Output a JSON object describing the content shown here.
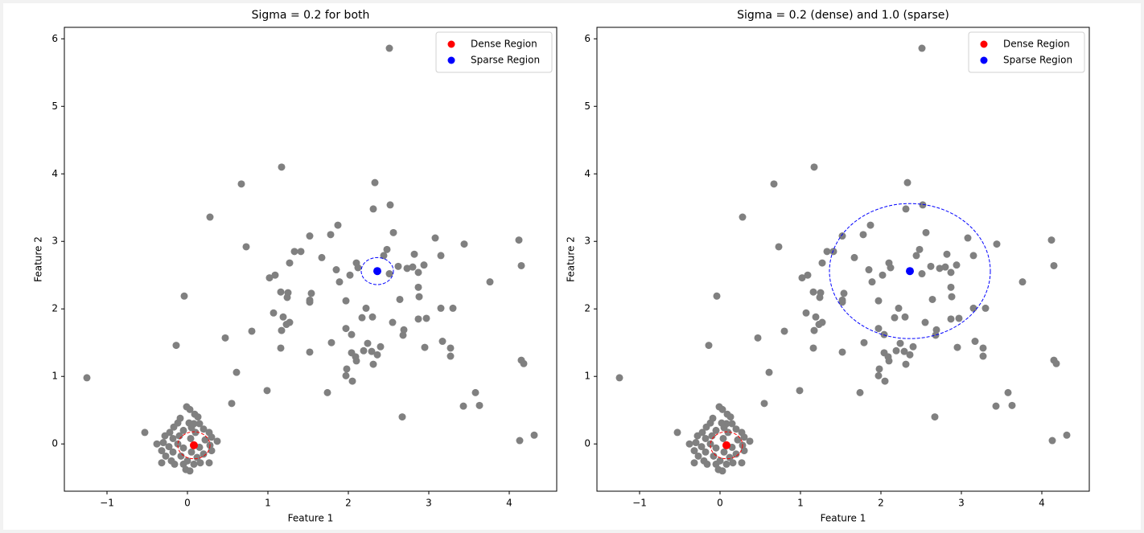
{
  "chart_data": [
    {
      "type": "scatter",
      "title": "Sigma = 0.2 for both",
      "xlabel": "Feature 1",
      "ylabel": "Feature 2",
      "xlim": [
        -1.53,
        4.59
      ],
      "ylim": [
        -0.7,
        6.17
      ],
      "xticks": [
        {
          "value": -1,
          "label": "−1"
        },
        0,
        1,
        2,
        3,
        4
      ],
      "yticks": [
        0,
        1,
        2,
        3,
        4,
        5,
        6
      ],
      "legend": "upper right",
      "series": [
        {
          "color": "#808080",
          "x": [
            -1.25,
            -0.53,
            -0.14,
            -0.04,
            0.28,
            0.47,
            0.55,
            0.61,
            0.67,
            0.73,
            0.8,
            0.99,
            1.02,
            1.09,
            1.17,
            1.07,
            1.16,
            1.19,
            1.16,
            1.17,
            1.23,
            1.27,
            1.24,
            1.27,
            1.33,
            1.41,
            1.25,
            1.52,
            1.54,
            1.52,
            1.52,
            1.52,
            1.67,
            1.74,
            1.78,
            1.79,
            1.87,
            1.85,
            1.89,
            1.97,
            1.97,
            1.98,
            1.97,
            2.02,
            2.04,
            2.04,
            2.05,
            2.09,
            2.1,
            2.1,
            2.12,
            2.17,
            2.22,
            2.24,
            2.19,
            2.29,
            2.31,
            2.33,
            2.31,
            2.3,
            2.36,
            2.4,
            2.44,
            2.48,
            2.52,
            2.51,
            2.51,
            2.55,
            2.56,
            2.62,
            2.64,
            2.67,
            2.68,
            2.69,
            2.73,
            2.8,
            2.82,
            2.87,
            2.87,
            2.88,
            2.87,
            2.95,
            2.94,
            2.97,
            3.08,
            3.15,
            3.15,
            3.17,
            3.27,
            3.27,
            3.3,
            3.44,
            3.43,
            3.58,
            3.63,
            3.76,
            4.12,
            4.15,
            4.15,
            4.18,
            4.13,
            4.31,
            -0.01,
            0.03,
            0.09,
            0.13,
            -0.09,
            0.02,
            -0.12,
            0.08,
            0.15,
            -0.17,
            0.05,
            0.2,
            -0.05,
            -0.22,
            0.1,
            0.27,
            -0.28,
            -0.1,
            0.3,
            -0.18,
            0.04,
            0.22,
            0.37,
            -0.3,
            -0.38,
            -0.12,
            0.28,
            -0.23,
            0.15,
            -0.05,
            -0.32,
            0.3,
            -0.18,
            0.05,
            0.2,
            -0.27,
            -0.08,
            0.12,
            -0.2,
            0,
            0.27,
            -0.32,
            0.16,
            -0.16,
            -0.05,
            0.08,
            -0.02,
            0.03
          ],
          "values": [
            0.98,
            0.17,
            1.46,
            2.19,
            3.36,
            1.57,
            0.6,
            1.06,
            3.85,
            2.92,
            1.67,
            0.79,
            2.46,
            2.5,
            4.1,
            1.94,
            2.25,
            1.88,
            1.42,
            1.68,
            1.77,
            1.8,
            2.17,
            2.68,
            2.85,
            2.85,
            2.24,
            2.13,
            2.23,
            2.1,
            1.36,
            3.08,
            2.76,
            0.76,
            3.1,
            1.5,
            3.24,
            2.58,
            2.4,
            2.12,
            1.71,
            1.11,
            1.01,
            2.5,
            1.62,
            1.35,
            0.93,
            1.29,
            1.23,
            2.68,
            2.61,
            1.87,
            2.01,
            1.49,
            1.38,
            1.37,
            3.48,
            3.87,
            1.18,
            1.88,
            1.32,
            1.44,
            2.79,
            2.88,
            3.54,
            2.52,
            5.86,
            1.8,
            3.13,
            2.63,
            2.14,
            0.4,
            1.61,
            1.69,
            2.6,
            2.62,
            2.81,
            2.54,
            2.32,
            2.18,
            1.85,
            1.43,
            2.65,
            1.86,
            3.05,
            2.01,
            2.79,
            1.52,
            1.42,
            1.3,
            2.01,
            2.96,
            0.56,
            0.76,
            0.57,
            2.4,
            3.02,
            2.64,
            1.24,
            1.19,
            0.05,
            0.13,
            0.55,
            0.51,
            0.44,
            0.4,
            0.38,
            0.31,
            0.31,
            0.3,
            0.3,
            0.25,
            0.24,
            0.22,
            0.2,
            0.17,
            0.17,
            0.17,
            0.12,
            0.12,
            0.1,
            0.08,
            0.08,
            0.06,
            0.04,
            0.02,
            0,
            0,
            -0.02,
            -0.04,
            -0.05,
            -0.06,
            -0.1,
            -0.1,
            -0.12,
            -0.12,
            -0.15,
            -0.18,
            -0.18,
            -0.2,
            -0.25,
            -0.25,
            -0.28,
            -0.28,
            -0.28,
            -0.3,
            -0.3,
            -0.3,
            -0.38,
            -0.4
          ]
        },
        {
          "name": "Dense Region",
          "color": "#ff0000",
          "x": [
            0.08
          ],
          "values": [
            -0.02
          ],
          "radius": 0.2
        },
        {
          "name": "Sparse Region",
          "color": "#0000ff",
          "x": [
            2.36
          ],
          "values": [
            2.56
          ],
          "radius": 0.2
        }
      ]
    },
    {
      "type": "scatter",
      "title": "Sigma = 0.2 (dense) and 1.0 (sparse)",
      "xlabel": "Feature 1",
      "ylabel": "Feature 2",
      "xlim": [
        -1.53,
        4.59
      ],
      "ylim": [
        -0.7,
        6.17
      ],
      "xticks": [
        {
          "value": -1,
          "label": "−1"
        },
        0,
        1,
        2,
        3,
        4
      ],
      "yticks": [
        0,
        1,
        2,
        3,
        4,
        5,
        6
      ],
      "legend": "upper right",
      "series": [
        {
          "color": "#808080",
          "x": [
            -1.25,
            -0.53,
            -0.14,
            -0.04,
            0.28,
            0.47,
            0.55,
            0.61,
            0.67,
            0.73,
            0.8,
            0.99,
            1.02,
            1.09,
            1.17,
            1.07,
            1.16,
            1.19,
            1.16,
            1.17,
            1.23,
            1.27,
            1.24,
            1.27,
            1.33,
            1.41,
            1.25,
            1.52,
            1.54,
            1.52,
            1.52,
            1.52,
            1.67,
            1.74,
            1.78,
            1.79,
            1.87,
            1.85,
            1.89,
            1.97,
            1.97,
            1.98,
            1.97,
            2.02,
            2.04,
            2.04,
            2.05,
            2.09,
            2.1,
            2.1,
            2.12,
            2.17,
            2.22,
            2.24,
            2.19,
            2.29,
            2.31,
            2.33,
            2.31,
            2.3,
            2.36,
            2.4,
            2.44,
            2.48,
            2.52,
            2.51,
            2.51,
            2.55,
            2.56,
            2.62,
            2.64,
            2.67,
            2.68,
            2.69,
            2.73,
            2.8,
            2.82,
            2.87,
            2.87,
            2.88,
            2.87,
            2.95,
            2.94,
            2.97,
            3.08,
            3.15,
            3.15,
            3.17,
            3.27,
            3.27,
            3.3,
            3.44,
            3.43,
            3.58,
            3.63,
            3.76,
            4.12,
            4.15,
            4.15,
            4.18,
            4.13,
            4.31,
            -0.01,
            0.03,
            0.09,
            0.13,
            -0.09,
            0.02,
            -0.12,
            0.08,
            0.15,
            -0.17,
            0.05,
            0.2,
            -0.05,
            -0.22,
            0.1,
            0.27,
            -0.28,
            -0.1,
            0.3,
            -0.18,
            0.04,
            0.22,
            0.37,
            -0.3,
            -0.38,
            -0.12,
            0.28,
            -0.23,
            0.15,
            -0.05,
            -0.32,
            0.3,
            -0.18,
            0.05,
            0.2,
            -0.27,
            -0.08,
            0.12,
            -0.2,
            0,
            0.27,
            -0.32,
            0.16,
            -0.16,
            -0.05,
            0.08,
            -0.02,
            0.03
          ],
          "values": [
            0.98,
            0.17,
            1.46,
            2.19,
            3.36,
            1.57,
            0.6,
            1.06,
            3.85,
            2.92,
            1.67,
            0.79,
            2.46,
            2.5,
            4.1,
            1.94,
            2.25,
            1.88,
            1.42,
            1.68,
            1.77,
            1.8,
            2.17,
            2.68,
            2.85,
            2.85,
            2.24,
            2.13,
            2.23,
            2.1,
            1.36,
            3.08,
            2.76,
            0.76,
            3.1,
            1.5,
            3.24,
            2.58,
            2.4,
            2.12,
            1.71,
            1.11,
            1.01,
            2.5,
            1.62,
            1.35,
            0.93,
            1.29,
            1.23,
            2.68,
            2.61,
            1.87,
            2.01,
            1.49,
            1.38,
            1.37,
            3.48,
            3.87,
            1.18,
            1.88,
            1.32,
            1.44,
            2.79,
            2.88,
            3.54,
            2.52,
            5.86,
            1.8,
            3.13,
            2.63,
            2.14,
            0.4,
            1.61,
            1.69,
            2.6,
            2.62,
            2.81,
            2.54,
            2.32,
            2.18,
            1.85,
            1.43,
            2.65,
            1.86,
            3.05,
            2.01,
            2.79,
            1.52,
            1.42,
            1.3,
            2.01,
            2.96,
            0.56,
            0.76,
            0.57,
            2.4,
            3.02,
            2.64,
            1.24,
            1.19,
            0.05,
            0.13,
            0.55,
            0.51,
            0.44,
            0.4,
            0.38,
            0.31,
            0.31,
            0.3,
            0.3,
            0.25,
            0.24,
            0.22,
            0.2,
            0.17,
            0.17,
            0.17,
            0.12,
            0.12,
            0.1,
            0.08,
            0.08,
            0.06,
            0.04,
            0.02,
            0,
            0,
            -0.02,
            -0.04,
            -0.05,
            -0.06,
            -0.1,
            -0.1,
            -0.12,
            -0.12,
            -0.15,
            -0.18,
            -0.18,
            -0.2,
            -0.25,
            -0.25,
            -0.28,
            -0.28,
            -0.28,
            -0.3,
            -0.3,
            -0.3,
            -0.38,
            -0.4
          ]
        },
        {
          "name": "Dense Region",
          "color": "#ff0000",
          "x": [
            0.08
          ],
          "values": [
            -0.02
          ],
          "radius": 0.2
        },
        {
          "name": "Sparse Region",
          "color": "#0000ff",
          "x": [
            2.36
          ],
          "values": [
            2.56
          ],
          "radius": 1.0
        }
      ]
    }
  ]
}
